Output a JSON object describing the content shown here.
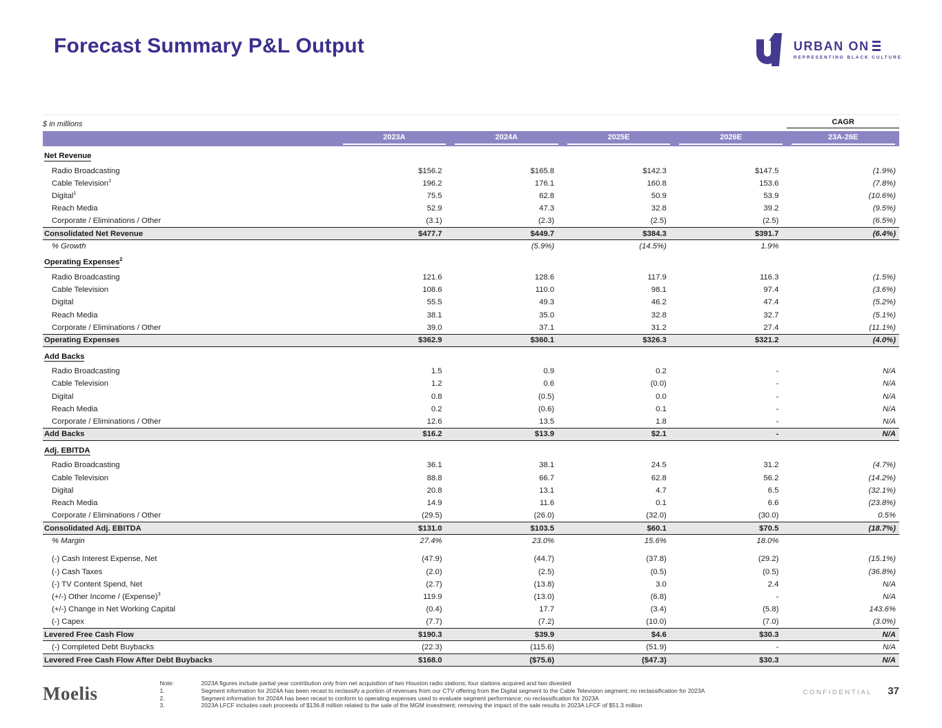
{
  "page": {
    "title": "Forecast Summary P&L Output"
  },
  "logo": {
    "brand_name": "URBAN ONE",
    "brand_prefix": "URBAN ON",
    "tagline": "REPRESENTING BLACK CULTURE",
    "monogram": "U1",
    "brand_color": "#443a8f"
  },
  "table": {
    "units_label": "$ in millions",
    "cagr_label": "CAGR",
    "columns": [
      "2023A",
      "2024A",
      "2025E",
      "2026E",
      "23A-26E"
    ],
    "band_color": "#8c85c4",
    "total_row_color": "#e7e7e7",
    "sections": [
      {
        "rows": [
          {
            "type": "header",
            "label": "Net Revenue"
          },
          {
            "type": "item",
            "label": "Radio Broadcasting",
            "values": [
              "$156.2",
              "$165.8",
              "$142.3",
              "$147.5",
              "(1.9%)"
            ]
          },
          {
            "type": "item",
            "label": "Cable Television",
            "sup": "1",
            "values": [
              "196.2",
              "176.1",
              "160.8",
              "153.6",
              "(7.8%)"
            ]
          },
          {
            "type": "item",
            "label": "Digital",
            "sup": "1",
            "values": [
              "75.5",
              "62.8",
              "50.9",
              "53.9",
              "(10.6%)"
            ]
          },
          {
            "type": "item",
            "label": "Reach Media",
            "values": [
              "52.9",
              "47.3",
              "32.8",
              "39.2",
              "(9.5%)"
            ]
          },
          {
            "type": "item",
            "label": "Corporate / Eliminations / Other",
            "values": [
              "(3.1)",
              "(2.3)",
              "(2.5)",
              "(2.5)",
              "(6.5%)"
            ]
          },
          {
            "type": "total",
            "label": "Consolidated Net Revenue",
            "values": [
              "$477.7",
              "$449.7",
              "$384.3",
              "$391.7",
              "(6.4%)"
            ]
          },
          {
            "type": "pct",
            "label": "% Growth",
            "values": [
              "",
              "(5.9%)",
              "(14.5%)",
              "1.9%",
              ""
            ]
          }
        ]
      },
      {
        "rows": [
          {
            "type": "header",
            "label": "Operating Expenses",
            "sup": "2"
          },
          {
            "type": "item",
            "label": "Radio Broadcasting",
            "values": [
              "121.6",
              "128.6",
              "117.9",
              "116.3",
              "(1.5%)"
            ]
          },
          {
            "type": "item",
            "label": "Cable Television",
            "values": [
              "108.6",
              "110.0",
              "98.1",
              "97.4",
              "(3.6%)"
            ]
          },
          {
            "type": "item",
            "label": "Digital",
            "values": [
              "55.5",
              "49.3",
              "46.2",
              "47.4",
              "(5.2%)"
            ]
          },
          {
            "type": "item",
            "label": "Reach Media",
            "values": [
              "38.1",
              "35.0",
              "32.8",
              "32.7",
              "(5.1%)"
            ]
          },
          {
            "type": "item",
            "label": "Corporate / Eliminations / Other",
            "values": [
              "39.0",
              "37.1",
              "31.2",
              "27.4",
              "(11.1%)"
            ]
          },
          {
            "type": "total",
            "label": "Operating Expenses",
            "values": [
              "$362.9",
              "$360.1",
              "$326.3",
              "$321.2",
              "(4.0%)"
            ]
          }
        ]
      },
      {
        "rows": [
          {
            "type": "header",
            "label": "Add Backs"
          },
          {
            "type": "item",
            "label": "Radio Broadcasting",
            "values": [
              "1.5",
              "0.9",
              "0.2",
              "-",
              "N/A"
            ]
          },
          {
            "type": "item",
            "label": "Cable Television",
            "values": [
              "1.2",
              "0.6",
              "(0.0)",
              "-",
              "N/A"
            ]
          },
          {
            "type": "item",
            "label": "Digital",
            "values": [
              "0.8",
              "(0.5)",
              "0.0",
              "-",
              "N/A"
            ]
          },
          {
            "type": "item",
            "label": "Reach Media",
            "values": [
              "0.2",
              "(0.6)",
              "0.1",
              "-",
              "N/A"
            ]
          },
          {
            "type": "item",
            "label": "Corporate / Eliminations / Other",
            "values": [
              "12.6",
              "13.5",
              "1.8",
              "-",
              "N/A"
            ]
          },
          {
            "type": "total",
            "label": "Add Backs",
            "values": [
              "$16.2",
              "$13.9",
              "$2.1",
              "-",
              "N/A"
            ]
          }
        ]
      },
      {
        "rows": [
          {
            "type": "header",
            "label": "Adj. EBITDA"
          },
          {
            "type": "item",
            "label": "Radio Broadcasting",
            "values": [
              "36.1",
              "38.1",
              "24.5",
              "31.2",
              "(4.7%)"
            ]
          },
          {
            "type": "item",
            "label": "Cable Television",
            "values": [
              "88.8",
              "66.7",
              "62.8",
              "56.2",
              "(14.2%)"
            ]
          },
          {
            "type": "item",
            "label": "Digital",
            "values": [
              "20.8",
              "13.1",
              "4.7",
              "6.5",
              "(32.1%)"
            ]
          },
          {
            "type": "item",
            "label": "Reach Media",
            "values": [
              "14.9",
              "11.6",
              "0.1",
              "6.6",
              "(23.8%)"
            ]
          },
          {
            "type": "item",
            "label": "Corporate / Eliminations / Other",
            "values": [
              "(29.5)",
              "(26.0)",
              "(32.0)",
              "(30.0)",
              "0.5%"
            ]
          },
          {
            "type": "total",
            "label": "Consolidated Adj. EBITDA",
            "values": [
              "$131.0",
              "$103.5",
              "$60.1",
              "$70.5",
              "(18.7%)"
            ]
          },
          {
            "type": "pct",
            "label": "% Margin",
            "values": [
              "27.4%",
              "23.0%",
              "15.6%",
              "18.0%",
              ""
            ]
          }
        ]
      },
      {
        "rows": [
          {
            "type": "item",
            "label": "(-) Cash Interest Expense, Net",
            "values": [
              "(47.9)",
              "(44.7)",
              "(37.8)",
              "(29.2)",
              "(15.1%)"
            ]
          },
          {
            "type": "item",
            "label": "(-) Cash Taxes",
            "values": [
              "(2.0)",
              "(2.5)",
              "(0.5)",
              "(0.5)",
              "(36.8%)"
            ]
          },
          {
            "type": "item",
            "label": "(-) TV Content Spend, Net",
            "values": [
              "(2.7)",
              "(13.8)",
              "3.0",
              "2.4",
              "N/A"
            ]
          },
          {
            "type": "item",
            "label": "(+/-) Other Income / (Expense)",
            "sup": "3",
            "values": [
              "119.9",
              "(13.0)",
              "(6.8)",
              "-",
              "N/A"
            ]
          },
          {
            "type": "item",
            "label": "(+/-) Change in Net Working Capital",
            "values": [
              "(0.4)",
              "17.7",
              "(3.4)",
              "(5.8)",
              "143.6%"
            ]
          },
          {
            "type": "item",
            "label": "(-) Capex",
            "values": [
              "(7.7)",
              "(7.2)",
              "(10.0)",
              "(7.0)",
              "(3.0%)"
            ]
          },
          {
            "type": "total",
            "label": "Levered Free Cash Flow",
            "values": [
              "$190.3",
              "$39.9",
              "$4.6",
              "$30.3",
              "N/A"
            ]
          },
          {
            "type": "item",
            "label": "(-) Completed Debt Buybacks",
            "values": [
              "(22.3)",
              "(115.6)",
              "(51.9)",
              "-",
              "N/A"
            ]
          },
          {
            "type": "total",
            "label": "Levered Free Cash Flow After Debt Buybacks",
            "values": [
              "$168.0",
              "($75.6)",
              "($47.3)",
              "$30.3",
              "N/A"
            ]
          }
        ]
      }
    ]
  },
  "footer": {
    "brand": "Moelis",
    "confidential_label": "CONFIDENTIAL",
    "page_number": "37",
    "notes": [
      {
        "label": "Note:",
        "text": "2023A figures include partial year contribution only from net acquisition of two Houston radio stations; four stations acquired and two divested"
      },
      {
        "label": "1.",
        "text": "Segment information for 2024A has been recast to reclassify a portion of revenues from our CTV offering from the Digital segment to the Cable Television segment; no reclassification for 2023A"
      },
      {
        "label": "2.",
        "text": "Segment information for 2024A has been recast to conform to operating expenses used to evaluate segment performance; no reclassification for 2023A"
      },
      {
        "label": "3.",
        "text": "2023A LFCF includes cash proceeds of $136.8 million related to the sale of the MGM investment; removing the impact of the sale results in 2023A LFCF of $51.3 million"
      }
    ]
  }
}
